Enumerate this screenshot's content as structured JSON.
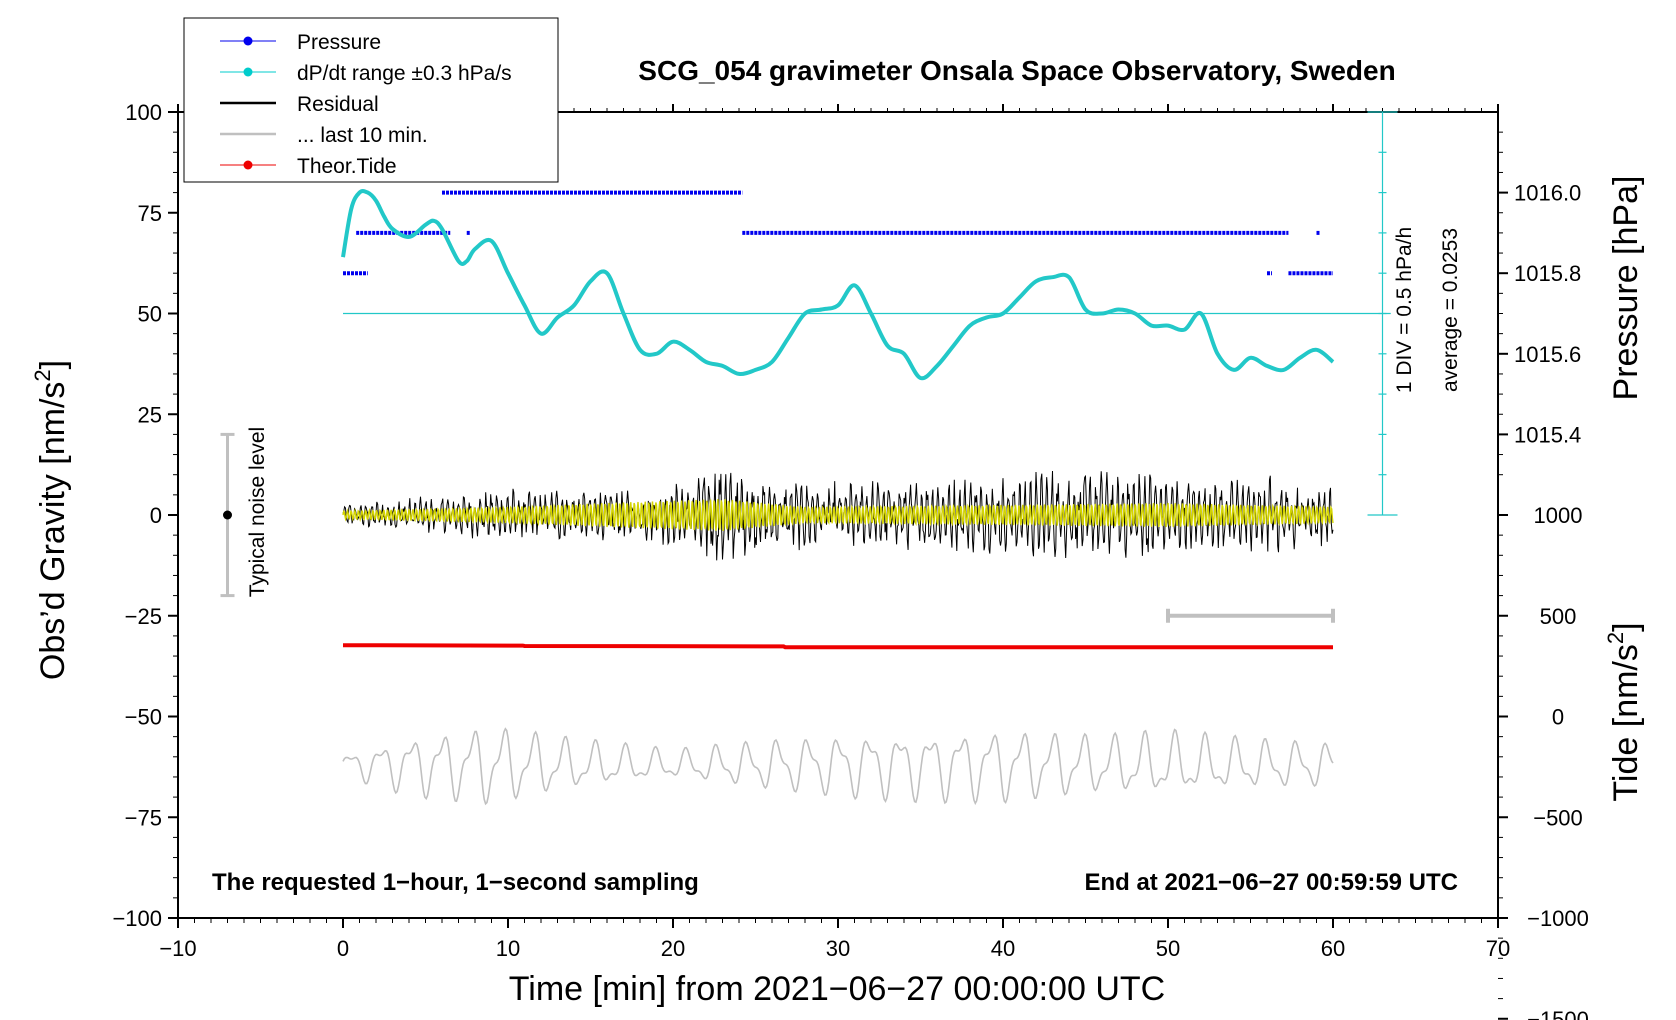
{
  "chart_data": {
    "type": "line",
    "title": "SCG_054 gravimeter Onsala Space Observatory, Sweden",
    "xlabel": "Time [min] from 2021−06−27 00:00:00 UTC",
    "ylabel_left": "Obs’d Gravity [nm/s",
    "ylabel_left_sup": "2",
    "ylabel_left_end": "]",
    "ylabel_right_pressure": "Pressure [hPa]",
    "ylabel_right_tide": "Tide [nm/s",
    "ylabel_right_tide_sup": "2",
    "ylabel_right_tide_end": "]",
    "xlim": [
      -10,
      70
    ],
    "ylim": [
      -100,
      100
    ],
    "x_ticks": [
      -10,
      0,
      10,
      20,
      30,
      40,
      50,
      60,
      70
    ],
    "x_tick_labels": [
      "−10",
      "0",
      "10",
      "20",
      "30",
      "40",
      "50",
      "60",
      "70"
    ],
    "y_ticks": [
      100,
      75,
      50,
      25,
      0,
      -25,
      -50,
      -75,
      -100
    ],
    "y_tick_labels": [
      "100",
      "75",
      "50",
      "25",
      "0",
      "−25",
      "−50",
      "−75",
      "−100"
    ],
    "pressure_ticks": [
      1016.0,
      1015.8,
      1015.6,
      1015.4
    ],
    "pressure_tick_labels": [
      "1016.0",
      "1015.8",
      "1015.6",
      "1015.4"
    ],
    "pressure_gravity_map": {
      "pressure_ref": 1016.0,
      "gravity_ref": 80,
      "gravity_per_hpa": 100
    },
    "tide_ticks": [
      1000,
      500,
      0,
      -500,
      -1000,
      -1500
    ],
    "tide_tick_labels": [
      "1000",
      "500",
      "0",
      "−500",
      "−1000",
      "−1500"
    ],
    "tide_gravity_map": {
      "tide_ref": 0,
      "gravity_ref": -50,
      "gravity_per_nms2": 0.05
    },
    "legend": [
      {
        "label": "Pressure",
        "color": "#0000ee",
        "marker": true
      },
      {
        "label": "dP/dt range ±0.3 hPa/s",
        "color": "#00cccc",
        "marker": true
      },
      {
        "label": "Residual",
        "color": "#000000",
        "marker": false
      },
      {
        "label": "... last 10 min.",
        "color": "#c0c0c0",
        "marker": false
      },
      {
        "label": "Theor.Tide",
        "color": "#ee0000",
        "marker": true
      }
    ],
    "legend_position": "top-left",
    "noise_label": "Typical noise level",
    "noise_range": [
      -20,
      20
    ],
    "scale_note": "1 DIV = 0.5 hPa/h",
    "average_note": "average = 0.0253",
    "dpdt_scale_range": [
      0,
      100
    ],
    "dpdt_zero_line": 50,
    "bottom_left_note": "The requested 1−hour, 1−second sampling",
    "bottom_right_note": "End at 2021−06−27 00:59:59 UTC",
    "last10_marker_range": [
      50,
      60
    ],
    "last10_marker_y": -25,
    "series": [
      {
        "name": "Pressure",
        "color": "#0000ee",
        "segments": [
          {
            "x0": 0,
            "x1": 1.5,
            "y": 60
          },
          {
            "x0": 0.8,
            "x1": 6.5,
            "y": 70
          },
          {
            "x0": 7.5,
            "x1": 7.7,
            "y": 70
          },
          {
            "x0": 6,
            "x1": 24.2,
            "y": 80
          },
          {
            "x0": 24.2,
            "x1": 57.3,
            "y": 70
          },
          {
            "x0": 59,
            "x1": 59.2,
            "y": 70
          },
          {
            "x0": 56,
            "x1": 56.3,
            "y": 60
          },
          {
            "x0": 57.3,
            "x1": 60,
            "y": 60
          }
        ]
      },
      {
        "name": "dP/dt",
        "color": "#22c8c8",
        "x": [
          0,
          0.5,
          1,
          1.5,
          2,
          2.5,
          3,
          4,
          5,
          5.5,
          6,
          7,
          7.5,
          8,
          9,
          10,
          11,
          12,
          13,
          14,
          15,
          16,
          17,
          18,
          19,
          20,
          21,
          22,
          23,
          24,
          25,
          26,
          27,
          28,
          29,
          30,
          31,
          32,
          33,
          34,
          35,
          36,
          37,
          38,
          39,
          40,
          41,
          42,
          43,
          44,
          45,
          46,
          47,
          48,
          49,
          50,
          51,
          52,
          53,
          54,
          55,
          56,
          57,
          58,
          59,
          60
        ],
        "y": [
          64,
          76,
          80,
          80,
          78,
          74,
          71,
          69,
          72,
          73,
          71,
          63,
          63,
          66,
          68,
          60,
          52,
          45,
          49,
          52,
          58,
          60,
          50,
          41,
          40,
          43,
          41,
          38,
          37,
          35,
          36,
          38,
          44,
          50,
          51,
          52,
          57,
          50,
          42,
          40,
          34,
          37,
          42,
          47,
          49,
          50,
          54,
          58,
          59,
          59,
          51,
          50,
          51,
          50,
          47,
          47,
          46,
          50,
          40,
          36,
          39,
          37,
          36,
          39,
          41,
          38
        ]
      },
      {
        "name": "Residual",
        "color": "#000000",
        "x_range": [
          0,
          60
        ],
        "center": 0,
        "envelope": [
          [
            0,
            3
          ],
          [
            6,
            5
          ],
          [
            10,
            7
          ],
          [
            13,
            7
          ],
          [
            17,
            6
          ],
          [
            20,
            8
          ],
          [
            23,
            14
          ],
          [
            26,
            9
          ],
          [
            30,
            9
          ],
          [
            35,
            9
          ],
          [
            40,
            10
          ],
          [
            43,
            12
          ],
          [
            48,
            11
          ],
          [
            50,
            12
          ],
          [
            52,
            8
          ],
          [
            56,
            11
          ],
          [
            60,
            8
          ]
        ]
      },
      {
        "name": "Residual filtered",
        "color": "#d4d400",
        "x_range": [
          0,
          60
        ],
        "center": 0,
        "envelope": [
          [
            0,
            1
          ],
          [
            10,
            2
          ],
          [
            16,
            3
          ],
          [
            23,
            4
          ],
          [
            28,
            2
          ],
          [
            40,
            2.5
          ],
          [
            50,
            3
          ],
          [
            60,
            2
          ]
        ]
      },
      {
        "name": "Theor.Tide",
        "color": "#ee0000",
        "x": [
          0,
          10.9,
          11,
          26.7,
          26.8,
          60
        ],
        "y": [
          -32.3,
          -32.4,
          -32.5,
          -32.6,
          -32.8,
          -32.8
        ]
      },
      {
        "name": "... last 10 min.",
        "color": "#c0c0c0",
        "x_range": [
          0,
          60
        ],
        "center": -62,
        "envelope": [
          [
            0,
            3
          ],
          [
            4,
            8
          ],
          [
            9,
            11
          ],
          [
            14,
            7
          ],
          [
            20,
            4
          ],
          [
            26,
            7
          ],
          [
            32,
            9
          ],
          [
            40,
            10
          ],
          [
            46,
            8
          ],
          [
            50,
            9
          ],
          [
            55,
            7
          ],
          [
            60,
            6
          ]
        ]
      }
    ]
  }
}
